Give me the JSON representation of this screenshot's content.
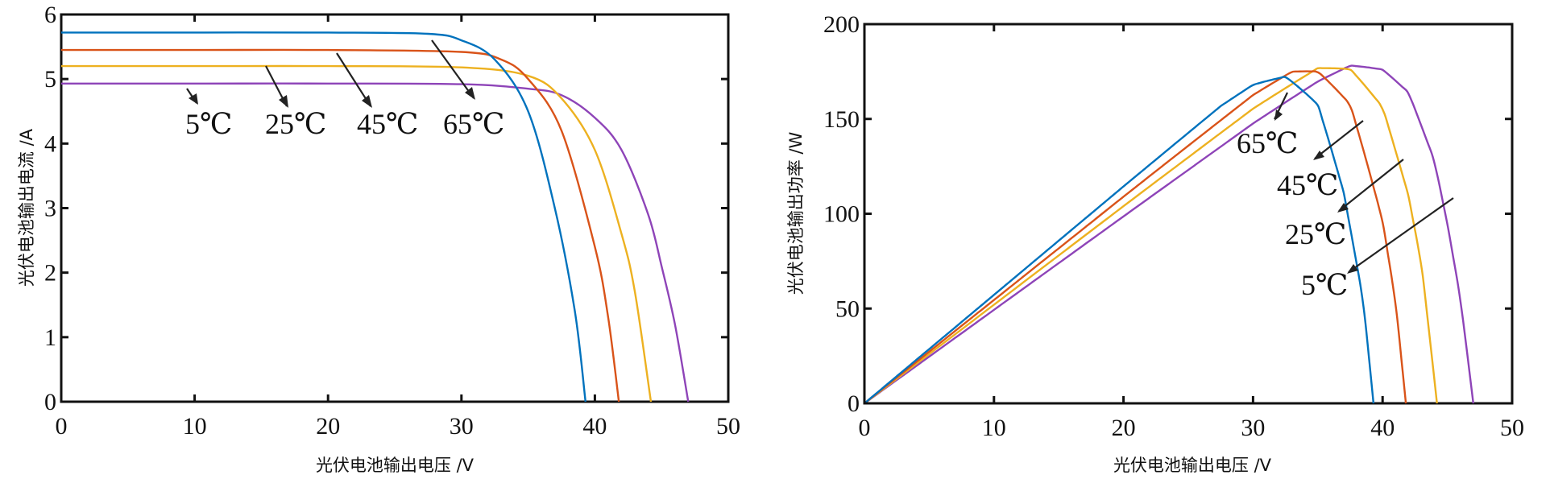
{
  "colors": {
    "5": "#8E44B8",
    "25": "#EDB120",
    "45": "#D95319",
    "65": "#0072BD"
  },
  "chart_data": [
    {
      "type": "line",
      "xlabel": "光伏电池输出电压 /V",
      "ylabel": "光伏电池输出电流 /A",
      "xlim": [
        0,
        50
      ],
      "ylim": [
        0,
        6
      ],
      "xticks": [
        "0",
        "10",
        "20",
        "30",
        "40",
        "50"
      ],
      "yticks": [
        "0",
        "1",
        "2",
        "3",
        "4",
        "5",
        "6"
      ],
      "grid": false,
      "annotations": [
        "5℃",
        "25℃",
        "45℃",
        "65℃"
      ],
      "series": [
        {
          "name": "5℃",
          "voc": 47.0,
          "isc": 4.93,
          "vknee": 37.5,
          "x": [
            0,
            10,
            20,
            30,
            35,
            37.5,
            40,
            42,
            44,
            45,
            46,
            47
          ],
          "y": [
            4.93,
            4.93,
            4.93,
            4.92,
            4.85,
            4.75,
            4.4,
            3.9,
            2.9,
            2.1,
            1.2,
            0
          ]
        },
        {
          "name": "25℃",
          "voc": 44.2,
          "isc": 5.2,
          "vknee": 35.0,
          "x": [
            0,
            10,
            20,
            30,
            35,
            37.5,
            40,
            42,
            43,
            44.2
          ],
          "y": [
            5.2,
            5.2,
            5.2,
            5.18,
            5.05,
            4.7,
            3.9,
            2.6,
            1.7,
            0
          ]
        },
        {
          "name": "45℃",
          "voc": 41.8,
          "isc": 5.45,
          "vknee": 32.5,
          "x": [
            0,
            10,
            20,
            30,
            33,
            35,
            37.5,
            40,
            41,
            41.8
          ],
          "y": [
            5.45,
            5.45,
            5.45,
            5.42,
            5.3,
            5.0,
            4.2,
            2.4,
            1.3,
            0
          ]
        },
        {
          "name": "65℃",
          "voc": 39.3,
          "isc": 5.72,
          "vknee": 30.0,
          "x": [
            0,
            10,
            20,
            27.5,
            30,
            32.5,
            35,
            37,
            38.5,
            39.3
          ],
          "y": [
            5.72,
            5.72,
            5.72,
            5.7,
            5.6,
            5.3,
            4.5,
            3.0,
            1.4,
            0
          ]
        }
      ]
    },
    {
      "type": "line",
      "xlabel": "光伏电池输出电压 /V",
      "ylabel": "光伏电池输出功率 /W",
      "xlim": [
        0,
        50
      ],
      "ylim": [
        0,
        200
      ],
      "xticks": [
        "0",
        "10",
        "20",
        "30",
        "40",
        "50"
      ],
      "yticks": [
        "0",
        "50",
        "100",
        "150",
        "200"
      ],
      "grid": false,
      "annotations": [
        "65℃",
        "45℃",
        "25℃",
        "5℃"
      ],
      "series": [
        {
          "name": "5℃",
          "peak_x": 39.3,
          "peak_y": 180
        },
        {
          "name": "25℃",
          "peak_x": 36.8,
          "peak_y": 179
        },
        {
          "name": "45℃",
          "peak_x": 34.8,
          "peak_y": 177
        },
        {
          "name": "65℃",
          "peak_x": 32.6,
          "peak_y": 175
        }
      ]
    }
  ]
}
